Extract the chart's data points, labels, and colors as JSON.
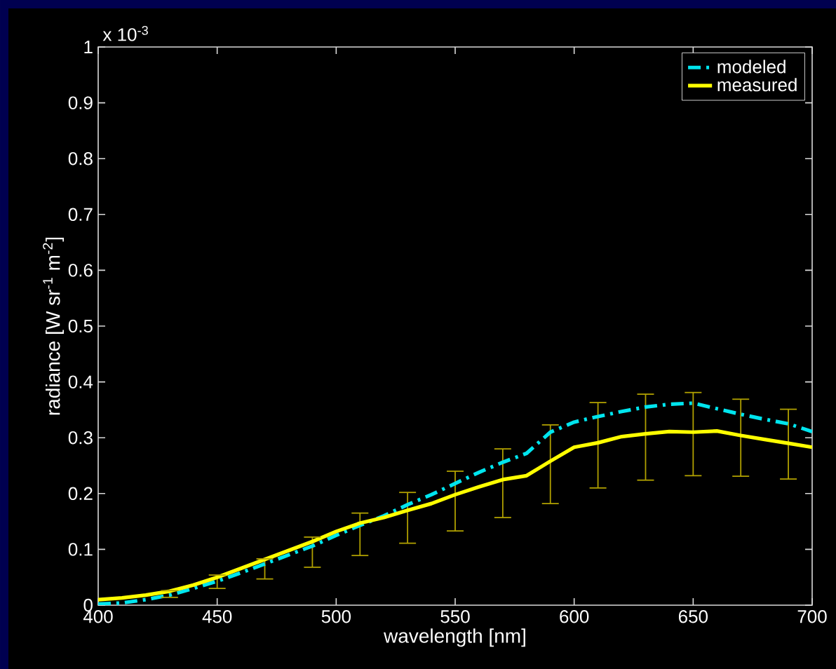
{
  "chart_data": {
    "type": "line",
    "xlabel": "wavelength [nm]",
    "ylabel": "radiance [W sr$^{-1}$ m$^{-2}$]",
    "annotations": [
      "x 10$^{-3}$"
    ],
    "x": [
      400,
      410,
      420,
      430,
      440,
      450,
      460,
      470,
      480,
      490,
      500,
      510,
      520,
      530,
      540,
      550,
      560,
      570,
      580,
      590,
      600,
      610,
      620,
      630,
      640,
      650,
      660,
      670,
      680,
      690,
      700
    ],
    "series": [
      {
        "name": "modeled",
        "color": "#00e5ee",
        "line_style": "dashdot",
        "values": [
          0.002,
          0.004,
          0.01,
          0.018,
          0.03,
          0.043,
          0.058,
          0.074,
          0.09,
          0.106,
          0.125,
          0.143,
          0.16,
          0.18,
          0.198,
          0.218,
          0.238,
          0.256,
          0.272,
          0.31,
          0.328,
          0.338,
          0.347,
          0.355,
          0.36,
          0.362,
          0.352,
          0.342,
          0.333,
          0.325,
          0.311
        ]
      },
      {
        "name": "measured",
        "color": "#ffff00",
        "line_style": "solid",
        "values": [
          0.01,
          0.013,
          0.018,
          0.025,
          0.036,
          0.05,
          0.066,
          0.082,
          0.098,
          0.114,
          0.132,
          0.147,
          0.157,
          0.17,
          0.182,
          0.198,
          0.212,
          0.225,
          0.232,
          0.258,
          0.283,
          0.291,
          0.302,
          0.307,
          0.311,
          0.31,
          0.312,
          0.304,
          0.297,
          0.29,
          0.283
        ],
        "errors": [
          null,
          null,
          null,
          [
            0.014,
            0.026
          ],
          null,
          [
            0.03,
            0.054
          ],
          null,
          [
            0.047,
            0.083
          ],
          null,
          [
            0.068,
            0.122
          ],
          null,
          [
            0.089,
            0.165
          ],
          null,
          [
            0.111,
            0.202
          ],
          null,
          [
            0.133,
            0.24
          ],
          null,
          [
            0.157,
            0.28
          ],
          null,
          [
            0.182,
            0.323
          ],
          null,
          [
            0.21,
            0.363
          ],
          null,
          [
            0.224,
            0.378
          ],
          null,
          [
            0.232,
            0.381
          ],
          null,
          [
            0.231,
            0.369
          ],
          null,
          [
            0.226,
            0.351
          ],
          null
        ]
      }
    ],
    "xlim": [
      400,
      700
    ],
    "ylim": [
      0,
      1
    ],
    "xticks": [
      400,
      450,
      500,
      550,
      600,
      650,
      700
    ],
    "yticks": [
      0,
      0.1,
      0.2,
      0.3,
      0.4,
      0.5,
      0.6,
      0.7,
      0.8,
      0.9,
      1
    ],
    "legend": "top right",
    "marker": "none",
    "grid": false
  }
}
